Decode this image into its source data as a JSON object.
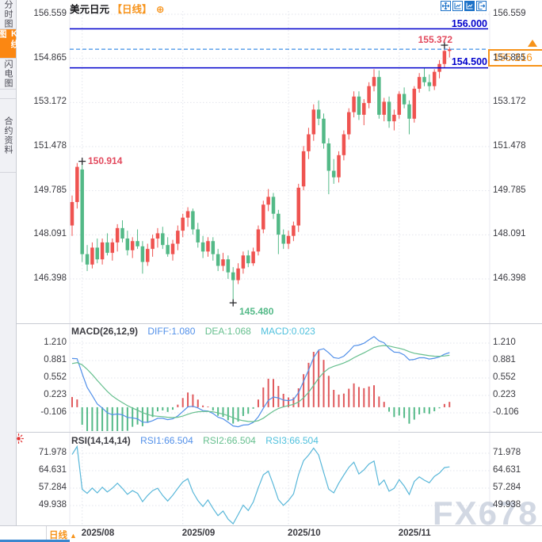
{
  "header": {
    "symbol": "美元日元",
    "period": "【日线】",
    "plus_icon": "⊕"
  },
  "toolbar": {
    "icons": [
      "move-crosshair",
      "chart-window",
      "chart-window-active",
      "exit-chart"
    ]
  },
  "sidebar": {
    "tabs": [
      {
        "label": "分时图",
        "active": false
      },
      {
        "label": "K线图",
        "active": true
      },
      {
        "label": "闪电图",
        "active": false
      },
      {
        "label": "合约资料",
        "active": false
      }
    ]
  },
  "price_panel": {
    "upper_line_label": "156.000",
    "lower_line_label": "154.500",
    "current_price": "155.216",
    "high_label": "155.372",
    "swing_high_label": "150.914",
    "low_label": "145.480"
  },
  "macd_panel": {
    "title": "MACD(26,12,9)",
    "diff_label": "DIFF:1.080",
    "dea_label": "DEA:1.068",
    "macd_label": "MACD:0.023"
  },
  "rsi_panel": {
    "title": "RSI(14,14,14)",
    "rsi1_label": "RSI1:66.504",
    "rsi2_label": "RSI2:66.504",
    "rsi3_label": "RSI3:66.504"
  },
  "footer": {
    "period_label": "日线",
    "arrow": "▲"
  },
  "watermark": "FX678",
  "colors": {
    "up": "#ef5350",
    "down": "#53b987",
    "navy_line": "#0000cc",
    "dashed_line": "#3f8fe6",
    "orange": "#f7931a",
    "diff_line": "#5290e9",
    "dea_line": "#66bf8e",
    "macd_bar_up": "#e0595c",
    "macd_bar_down": "#53b987",
    "rsi_line": "#59b7d9",
    "grid": "#e2e4ec",
    "divider": "#c9ccd3",
    "annotation_red": "#e2485c",
    "annotation_green": "#53b987",
    "cross": "#2c2c30",
    "alert_red": "#e23333"
  },
  "chart_data": [
    {
      "type": "candlestick",
      "title": "美元日元 日线",
      "x_labels": [
        "2025/08",
        "2025/09",
        "2025/10",
        "2025/11"
      ],
      "x_label_candle_indices": [
        2,
        22,
        43,
        65
      ],
      "y_ticks": [
        "156.559",
        "154.865",
        "153.172",
        "151.478",
        "149.785",
        "148.091",
        "146.398"
      ],
      "ylim": [
        145.3,
        156.9
      ],
      "annotations": {
        "high": 155.372,
        "low": 145.48,
        "swing_high": 150.914,
        "current_price": 155.216,
        "upper_level": 156.0,
        "lower_level": 154.5
      },
      "candles_ohlc": [
        [
          148.45,
          149.6,
          148.05,
          149.35
        ],
        [
          149.35,
          150.85,
          149.1,
          150.7
        ],
        [
          150.6,
          150.914,
          147.05,
          147.35
        ],
        [
          147.35,
          147.7,
          146.7,
          146.95
        ],
        [
          146.95,
          147.8,
          146.8,
          147.6
        ],
        [
          147.6,
          147.95,
          147.0,
          147.15
        ],
        [
          147.15,
          147.95,
          146.95,
          147.8
        ],
        [
          147.8,
          148.15,
          147.3,
          147.4
        ],
        [
          147.4,
          147.95,
          147.1,
          147.8
        ],
        [
          147.8,
          148.5,
          147.45,
          148.35
        ],
        [
          148.35,
          148.65,
          147.8,
          147.95
        ],
        [
          147.95,
          148.25,
          147.3,
          147.5
        ],
        [
          147.5,
          148.0,
          147.2,
          147.85
        ],
        [
          147.85,
          148.3,
          147.55,
          147.65
        ],
        [
          147.65,
          147.85,
          146.6,
          147.05
        ],
        [
          147.05,
          147.75,
          146.9,
          147.55
        ],
        [
          147.55,
          148.1,
          147.25,
          147.95
        ],
        [
          147.95,
          148.35,
          147.6,
          148.15
        ],
        [
          148.15,
          148.4,
          147.55,
          147.7
        ],
        [
          147.7,
          148.0,
          147.25,
          147.35
        ],
        [
          147.35,
          147.9,
          147.1,
          147.75
        ],
        [
          147.75,
          148.45,
          147.5,
          148.25
        ],
        [
          148.25,
          148.9,
          148.0,
          148.75
        ],
        [
          148.75,
          149.15,
          148.4,
          149.0
        ],
        [
          149.0,
          149.1,
          148.1,
          148.3
        ],
        [
          148.3,
          148.55,
          147.6,
          147.8
        ],
        [
          147.8,
          148.05,
          147.2,
          147.45
        ],
        [
          147.45,
          148.0,
          147.25,
          147.85
        ],
        [
          147.85,
          148.0,
          147.1,
          147.35
        ],
        [
          147.35,
          147.55,
          146.7,
          146.9
        ],
        [
          146.9,
          147.4,
          146.7,
          147.15
        ],
        [
          147.15,
          147.3,
          146.4,
          146.65
        ],
        [
          146.65,
          146.85,
          145.48,
          146.35
        ],
        [
          146.35,
          147.0,
          146.2,
          146.8
        ],
        [
          146.8,
          147.45,
          146.6,
          147.3
        ],
        [
          147.3,
          147.5,
          146.85,
          147.0
        ],
        [
          147.0,
          147.6,
          146.9,
          147.45
        ],
        [
          147.45,
          148.45,
          147.3,
          148.3
        ],
        [
          148.3,
          149.4,
          148.15,
          149.25
        ],
        [
          149.25,
          149.85,
          149.0,
          149.55
        ],
        [
          149.55,
          149.7,
          148.7,
          148.9
        ],
        [
          148.9,
          149.05,
          147.35,
          148.1
        ],
        [
          148.1,
          148.3,
          147.55,
          147.75
        ],
        [
          147.75,
          148.25,
          147.55,
          148.05
        ],
        [
          148.05,
          148.6,
          147.85,
          148.45
        ],
        [
          148.45,
          150.05,
          148.2,
          149.9
        ],
        [
          149.95,
          151.5,
          149.8,
          151.3
        ],
        [
          151.3,
          152.2,
          151.0,
          151.95
        ],
        [
          151.95,
          153.1,
          151.7,
          152.9
        ],
        [
          152.9,
          153.25,
          152.3,
          152.55
        ],
        [
          152.55,
          152.75,
          151.4,
          151.6
        ],
        [
          151.6,
          151.8,
          149.65,
          150.55
        ],
        [
          150.55,
          151.0,
          150.05,
          150.3
        ],
        [
          150.3,
          151.3,
          150.1,
          151.15
        ],
        [
          151.15,
          152.1,
          150.95,
          151.95
        ],
        [
          151.95,
          152.95,
          151.75,
          152.8
        ],
        [
          152.8,
          153.6,
          152.6,
          153.4
        ],
        [
          153.4,
          153.6,
          152.5,
          152.7
        ],
        [
          152.7,
          153.3,
          152.3,
          153.15
        ],
        [
          153.15,
          153.95,
          152.95,
          153.8
        ],
        [
          153.8,
          154.45,
          153.6,
          154.15
        ],
        [
          154.15,
          154.4,
          152.55,
          152.7
        ],
        [
          152.7,
          153.35,
          152.45,
          153.2
        ],
        [
          153.2,
          153.4,
          152.2,
          152.45
        ],
        [
          152.45,
          152.9,
          152.1,
          152.7
        ],
        [
          152.7,
          153.6,
          152.55,
          153.5
        ],
        [
          153.5,
          153.75,
          152.95,
          153.1
        ],
        [
          153.1,
          153.25,
          151.95,
          152.55
        ],
        [
          152.55,
          153.8,
          152.4,
          153.7
        ],
        [
          153.7,
          154.3,
          153.55,
          154.15
        ],
        [
          154.15,
          154.5,
          153.8,
          153.95
        ],
        [
          153.95,
          154.25,
          153.6,
          153.8
        ],
        [
          153.8,
          154.45,
          153.65,
          154.35
        ],
        [
          154.35,
          154.8,
          154.1,
          154.65
        ],
        [
          154.65,
          155.372,
          154.5,
          155.15
        ],
        [
          155.15,
          155.3,
          154.9,
          155.216
        ]
      ]
    },
    {
      "type": "line",
      "name": "MACD",
      "params": "26,12,9",
      "last_values": {
        "DIFF": 1.08,
        "DEA": 1.068,
        "MACD": 0.023
      },
      "y_ticks": [
        "1.210",
        "0.881",
        "0.552",
        "0.223",
        "-0.106"
      ]
    },
    {
      "type": "line",
      "name": "RSI",
      "params": "14,14,14",
      "last_values": {
        "RSI1": 66.504,
        "RSI2": 66.504,
        "RSI3": 66.504
      },
      "y_ticks": [
        "71.978",
        "64.631",
        "57.284",
        "49.938"
      ]
    }
  ]
}
